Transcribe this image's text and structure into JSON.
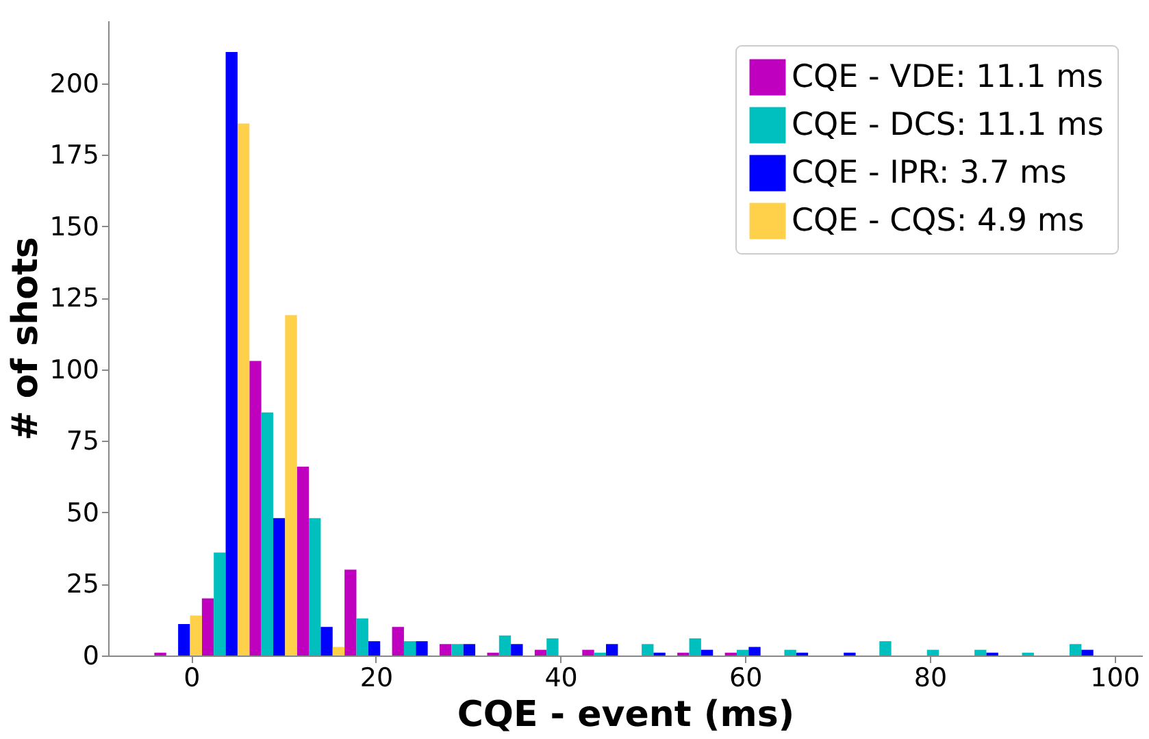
{
  "chart_data": {
    "type": "histogram",
    "xlabel": "CQE - event (ms)",
    "ylabel": "# of shots",
    "bins": [
      -4,
      1.15,
      6.3,
      11.45,
      16.6,
      21.75,
      26.9,
      32.05,
      37.2,
      42.35,
      47.5,
      52.65,
      57.8,
      62.95,
      68.1,
      73.25,
      78.4,
      83.55,
      88.7,
      93.85,
      99
    ],
    "series": [
      {
        "name": "CQE - VDE: 11.1 ms",
        "color": "#bf00bf",
        "values": [
          1,
          20,
          103,
          66,
          30,
          10,
          4,
          1,
          2,
          2,
          0,
          1,
          1,
          0,
          0,
          0,
          0,
          0,
          0,
          0
        ]
      },
      {
        "name": "CQE - DCS: 11.1 ms",
        "color": "#00bfbf",
        "values": [
          0,
          36,
          85,
          48,
          13,
          5,
          4,
          7,
          6,
          1,
          4,
          6,
          2,
          2,
          0,
          5,
          2,
          2,
          1,
          4
        ]
      },
      {
        "name": "CQE - IPR: 3.7 ms",
        "color": "#0000ff",
        "values": [
          11,
          211,
          48,
          10,
          5,
          5,
          4,
          4,
          0,
          4,
          1,
          2,
          3,
          1,
          1,
          0,
          0,
          1,
          0,
          2
        ]
      },
      {
        "name": "CQE - CQS: 4.9 ms",
        "color": "#ffd04a",
        "values": [
          14,
          186,
          119,
          3,
          0,
          0,
          0,
          0,
          0,
          0,
          0,
          0,
          0,
          0,
          0,
          0,
          0,
          0,
          0,
          0
        ]
      }
    ],
    "xlim": [
      -9,
      103
    ],
    "xticks": [
      0,
      20,
      40,
      60,
      80,
      100
    ],
    "ylim": [
      0,
      222
    ],
    "yticks": [
      0,
      25,
      50,
      75,
      100,
      125,
      150,
      175,
      200
    ],
    "grid": false,
    "legend": "top right"
  }
}
